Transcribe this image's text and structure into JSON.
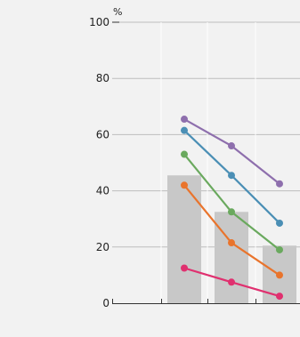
{
  "chart_data": {
    "type": "bar",
    "unit_label": "%",
    "ylim": [
      0,
      100
    ],
    "y_ticks": [
      0,
      20,
      40,
      60,
      80,
      100
    ],
    "y_tick_labels": [
      "0",
      "20",
      "40",
      "60",
      "80",
      "100"
    ],
    "grid": true,
    "categories": [
      "",
      "",
      "",
      ""
    ],
    "bars": [
      null,
      45.5,
      32.5,
      20.5
    ],
    "bar_color": "#c8c8c8",
    "series": [
      {
        "color": "#8e6fad",
        "values": [
          null,
          65.5,
          56,
          42.5
        ]
      },
      {
        "color": "#4b8fb5",
        "values": [
          null,
          61.5,
          45.5,
          28.5
        ]
      },
      {
        "color": "#6aa95e",
        "values": [
          null,
          53,
          32.5,
          19
        ]
      },
      {
        "color": "#e9742c",
        "values": [
          null,
          42,
          21.5,
          10
        ]
      },
      {
        "color": "#e0306f",
        "values": [
          null,
          12.5,
          7.5,
          2.5
        ]
      }
    ]
  }
}
